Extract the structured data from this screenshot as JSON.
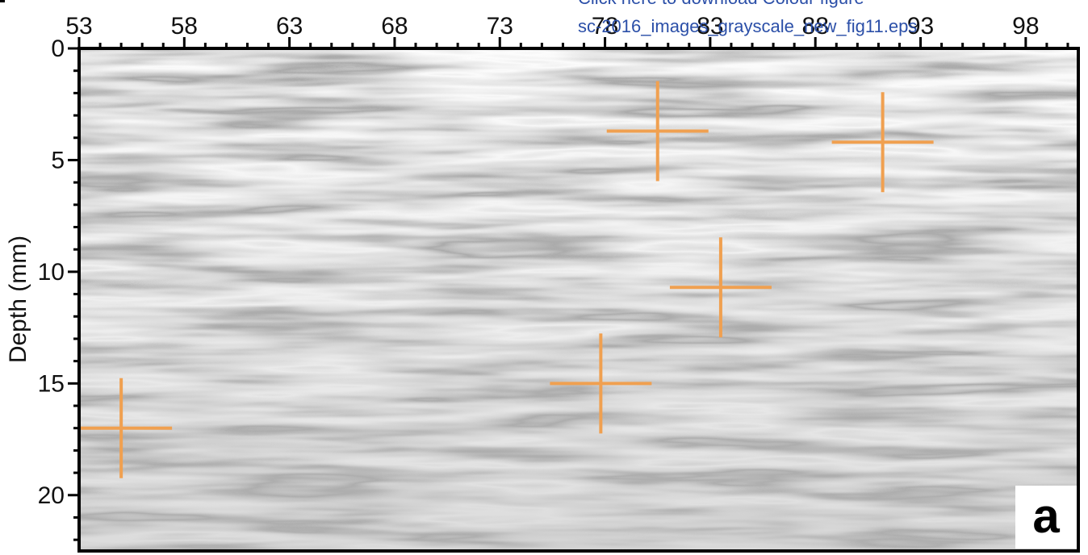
{
  "chart_data": {
    "type": "heatmap",
    "title": "",
    "xlabel": "",
    "ylabel": "Depth (mm)",
    "x_axis_position": "top",
    "xlim": [
      53,
      100.5
    ],
    "ylim": [
      0,
      22.5
    ],
    "y_inverted": true,
    "x_ticks": [
      53,
      58,
      63,
      68,
      73,
      78,
      83,
      88,
      93,
      98
    ],
    "x_tick_labels": [
      "53",
      "58",
      "63",
      "68",
      "73",
      "78",
      "83",
      "88",
      "93",
      "98"
    ],
    "y_ticks": [
      0,
      5,
      10,
      15,
      20
    ],
    "y_tick_labels": [
      "0",
      "5",
      "10",
      "15",
      "20"
    ],
    "colormap": "grayscale",
    "grid": false,
    "panel_label": "a",
    "markers": {
      "style": "crosshair",
      "color": "#f0a050",
      "points": [
        {
          "x": 55.0,
          "y": 17.0
        },
        {
          "x": 80.5,
          "y": 3.7
        },
        {
          "x": 83.5,
          "y": 10.7
        },
        {
          "x": 77.8,
          "y": 15.0
        },
        {
          "x": 91.2,
          "y": 4.2
        }
      ]
    }
  },
  "overlay": {
    "line1": "Click here to download Colour figure",
    "line2": "sc-2016_images_grayscale_new_fig11.eps",
    "link_color": "#2b4fa8"
  }
}
